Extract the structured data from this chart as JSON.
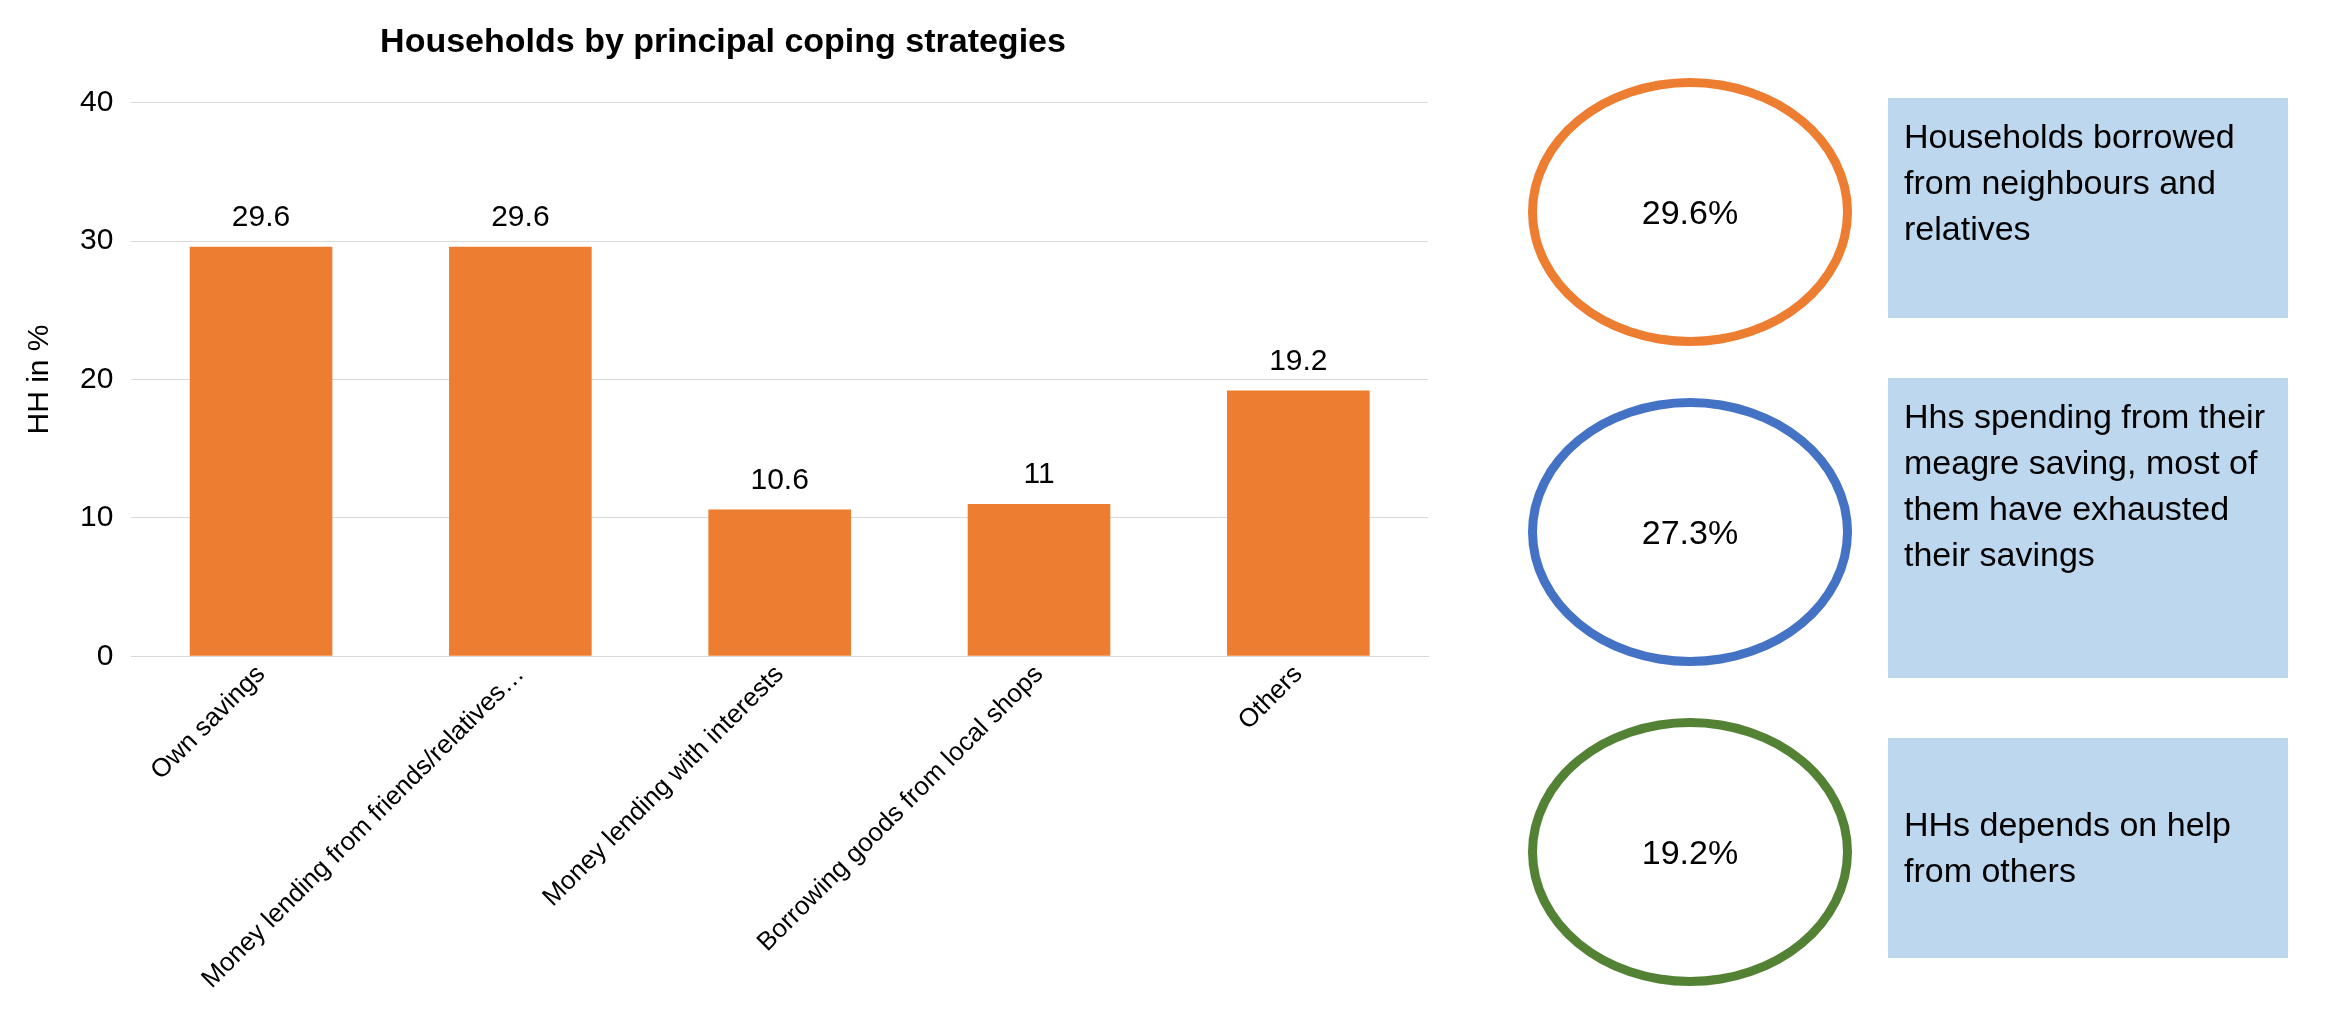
{
  "chart_data": [
    {
      "type": "bar",
      "title": "Households by principal coping strategies",
      "ylabel": "HH in %",
      "categories": [
        "Own savings",
        "Money lending from friends/relatives…",
        "Money lending with interests",
        "Borrowing goods from local shops",
        "Others"
      ],
      "values": [
        29.6,
        29.6,
        10.6,
        11,
        19.2
      ],
      "color": "#ed7d31",
      "ylim": [
        0,
        40
      ],
      "yticks": [
        0,
        10,
        20,
        30,
        40
      ],
      "grid": "y",
      "data_labels": true
    },
    {
      "type": "other",
      "categories": [
        "29.6%",
        "27.3%",
        "19.2%"
      ],
      "colors": [
        "#ed7d31",
        "#4472c4",
        "#548235"
      ],
      "annotations": [
        "Households borrowed from neighbours and relatives",
        "Hhs spending from their meagre saving, most of them have exhausted their savings",
        "HHs depends on help from others"
      ]
    }
  ]
}
